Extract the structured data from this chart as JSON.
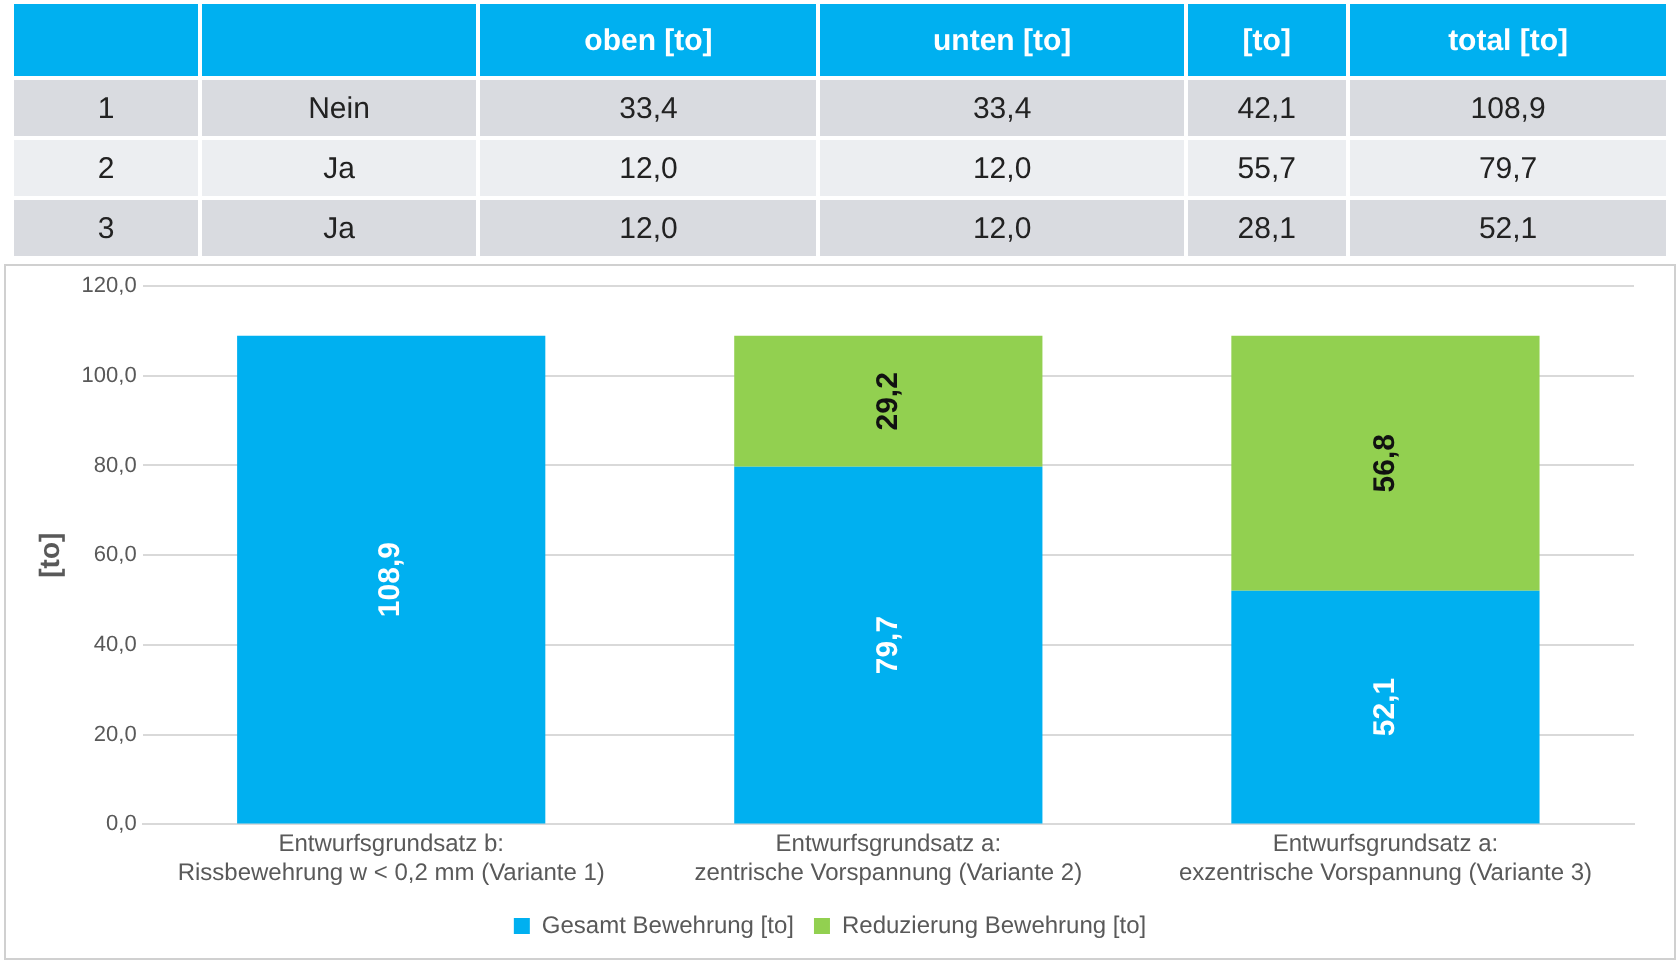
{
  "chart_data": [
    {
      "type": "other",
      "categories": [
        "oben [to]",
        "unten [to]",
        "[to]",
        "total [to]"
      ],
      "y_categories": [
        "1",
        "2",
        "3"
      ],
      "y2_categories": [
        "Nein",
        "Ja",
        "Ja"
      ],
      "cell_labels": [
        [
          "33,4",
          "33,4",
          "42,1",
          "108,9"
        ],
        [
          "12,0",
          "12,0",
          "55,7",
          "79,7"
        ],
        [
          "12,0",
          "12,0",
          "28,1",
          "52,1"
        ]
      ]
    },
    {
      "type": "bar",
      "stacked": true,
      "ylabel": "[to]",
      "categories": [
        "Entwurfsgrundsatz b:\nRissbewehrung w < 0,2 mm (Variante 1)",
        "Entwurfsgrundsatz a:\nzentrische Vorspannung (Variante 2)",
        "Entwurfsgrundsatz a:\nexzentrische Vorspannung (Variante 3)"
      ],
      "series": [
        {
          "name": "Gesamt Bewehrung [to]",
          "color": "#00b0f0",
          "values": [
            108.9,
            79.7,
            52.1
          ],
          "value_labels": [
            "108,9",
            "79,7",
            "52,1"
          ]
        },
        {
          "name": "Reduzierung Bewehrung [to]",
          "color": "#92d050",
          "values": [
            null,
            29.2,
            56.8
          ],
          "value_labels": [
            null,
            "29,2",
            "56,8"
          ]
        }
      ],
      "ylim": [
        0,
        120
      ],
      "yticks": [
        {
          "value": 0,
          "label": "0,0"
        },
        {
          "value": 20,
          "label": "20,0"
        },
        {
          "value": 40,
          "label": "40,0"
        },
        {
          "value": 60,
          "label": "60,0"
        },
        {
          "value": 80,
          "label": "80,0"
        },
        {
          "value": 100,
          "label": "100,0"
        },
        {
          "value": 120,
          "label": "120,0"
        }
      ],
      "grid": "y",
      "legend": "bottom"
    }
  ]
}
